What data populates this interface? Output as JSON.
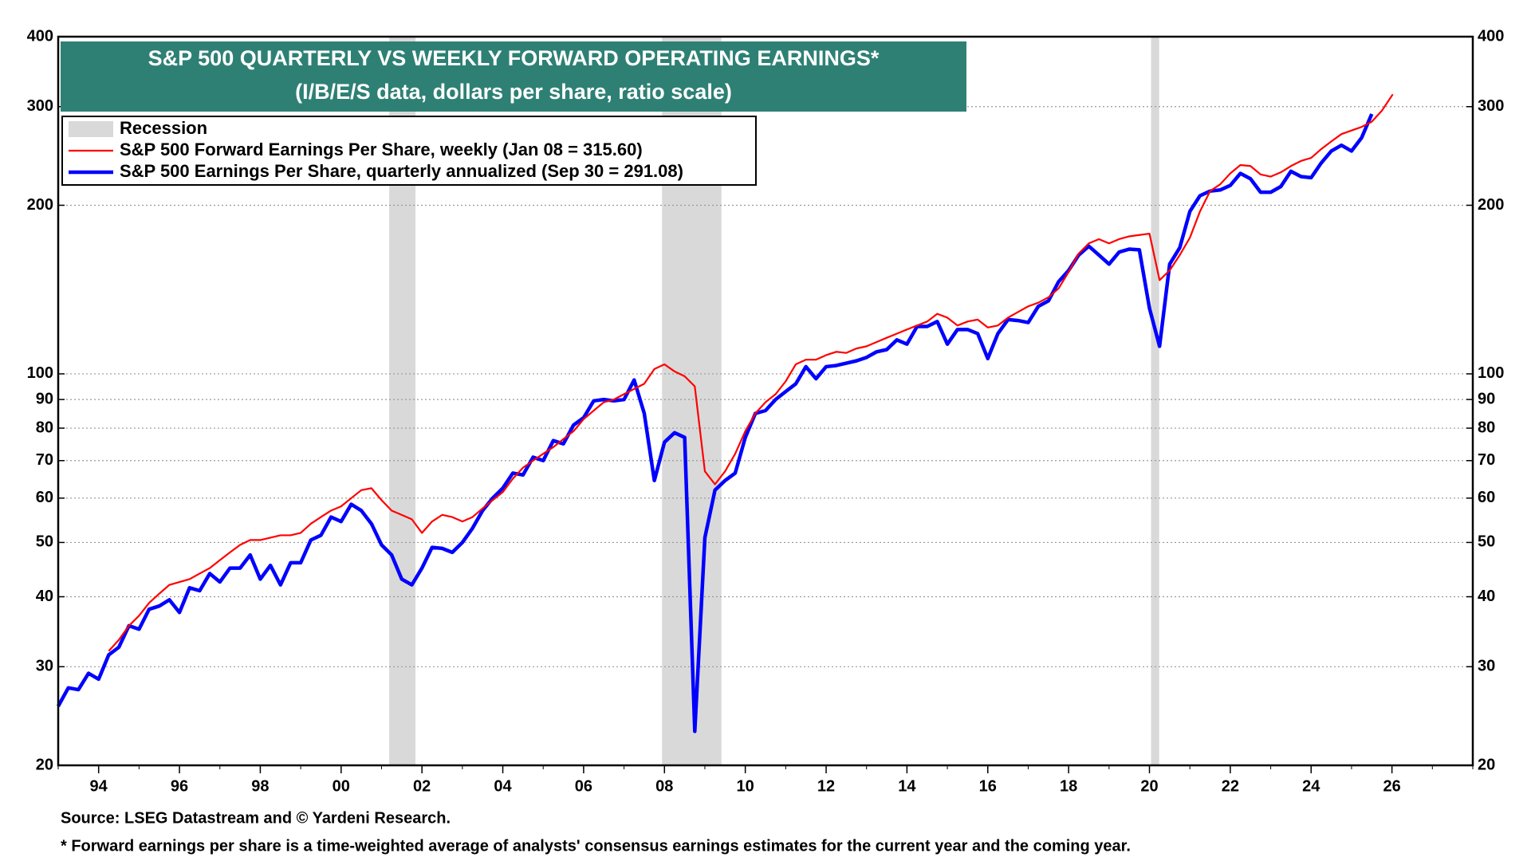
{
  "chart_data": {
    "type": "line",
    "title": "S&P 500 QUARTERLY VS WEEKLY FORWARD OPERATING EARNINGS*",
    "subtitle": "(I/B/E/S data, dollars per share, ratio scale)",
    "source": "Source: LSEG Datastream and © Yardeni Research.",
    "footnote": "* Forward earnings per share is a time-weighted average of analysts' consensus earnings estimates for the current year and the coming year.",
    "log_scale": true,
    "grid": true,
    "legend": "upper left",
    "xlim": [
      1993,
      2028
    ],
    "xticks": [
      {
        "value": 1994,
        "label": "94"
      },
      {
        "value": 1996,
        "label": "96"
      },
      {
        "value": 1998,
        "label": "98"
      },
      {
        "value": 2000,
        "label": "00"
      },
      {
        "value": 2002,
        "label": "02"
      },
      {
        "value": 2004,
        "label": "04"
      },
      {
        "value": 2006,
        "label": "06"
      },
      {
        "value": 2008,
        "label": "08"
      },
      {
        "value": 2010,
        "label": "10"
      },
      {
        "value": 2012,
        "label": "12"
      },
      {
        "value": 2014,
        "label": "14"
      },
      {
        "value": 2016,
        "label": "16"
      },
      {
        "value": 2018,
        "label": "18"
      },
      {
        "value": 2020,
        "label": "20"
      },
      {
        "value": 2022,
        "label": "22"
      },
      {
        "value": 2024,
        "label": "24"
      },
      {
        "value": 2026,
        "label": "26"
      }
    ],
    "ylim": [
      20,
      400
    ],
    "yticks": [
      20,
      30,
      40,
      50,
      60,
      70,
      80,
      90,
      100,
      200,
      300,
      400
    ],
    "recessions": {
      "name": "Recession",
      "color": "#d9d9d9",
      "periods": [
        [
          2001.19,
          2001.84
        ],
        [
          2007.94,
          2009.41
        ],
        [
          2020.04,
          2020.24
        ]
      ]
    },
    "series": [
      {
        "name": "S&P 500 Forward Earnings Per Share, weekly (Jan 08 = 315.60)",
        "color": "#ff0000",
        "x": [
          1994.25,
          1994.5,
          1994.75,
          1995,
          1995.25,
          1995.5,
          1995.75,
          1996,
          1996.25,
          1996.5,
          1996.75,
          1997,
          1997.25,
          1997.5,
          1997.75,
          1998,
          1998.25,
          1998.5,
          1998.75,
          1999,
          1999.25,
          1999.5,
          1999.75,
          2000,
          2000.25,
          2000.5,
          2000.75,
          2001,
          2001.25,
          2001.5,
          2001.75,
          2002,
          2002.25,
          2002.5,
          2002.75,
          2003,
          2003.25,
          2003.5,
          2003.75,
          2004,
          2004.25,
          2004.5,
          2004.75,
          2005,
          2005.25,
          2005.5,
          2005.75,
          2006,
          2006.25,
          2006.5,
          2006.75,
          2007,
          2007.25,
          2007.5,
          2007.75,
          2008,
          2008.25,
          2008.5,
          2008.75,
          2009,
          2009.25,
          2009.5,
          2009.75,
          2010,
          2010.25,
          2010.5,
          2010.75,
          2011,
          2011.25,
          2011.5,
          2011.75,
          2012,
          2012.25,
          2012.5,
          2012.75,
          2013,
          2013.25,
          2013.5,
          2013.75,
          2014,
          2014.25,
          2014.5,
          2014.75,
          2015,
          2015.25,
          2015.5,
          2015.75,
          2016,
          2016.25,
          2016.5,
          2016.75,
          2017,
          2017.25,
          2017.5,
          2017.75,
          2018,
          2018.25,
          2018.5,
          2018.75,
          2019,
          2019.25,
          2019.5,
          2019.75,
          2020,
          2020.25,
          2020.5,
          2020.75,
          2021,
          2021.25,
          2021.5,
          2021.75,
          2022,
          2022.25,
          2022.5,
          2022.75,
          2023,
          2023.25,
          2023.5,
          2023.75,
          2024,
          2024.25,
          2024.5,
          2024.75,
          2025,
          2025.25,
          2025.5,
          2025.75,
          2026.02
        ],
        "values": [
          32,
          33.5,
          35.5,
          37,
          39,
          40.5,
          42,
          42.5,
          43,
          44,
          45,
          46.5,
          48,
          49.5,
          50.5,
          50.5,
          51,
          51.5,
          51.5,
          52,
          54,
          55.5,
          57,
          58,
          60,
          62,
          62.5,
          59.5,
          57,
          56,
          55,
          52,
          54.5,
          56,
          55.5,
          54.5,
          55.5,
          57.5,
          59.5,
          61.5,
          65,
          68,
          70,
          72,
          74,
          76.5,
          79,
          83,
          86,
          89,
          90,
          92,
          94,
          96,
          102,
          104,
          101,
          99,
          95,
          67,
          63.5,
          67,
          72,
          79,
          85,
          89,
          92,
          97,
          104,
          106,
          106,
          108,
          109.5,
          109,
          111,
          112,
          114,
          116,
          118,
          120,
          122,
          124,
          128,
          126,
          122,
          124,
          125,
          121,
          122,
          126,
          129,
          132,
          134,
          137,
          142,
          152,
          164,
          171,
          174,
          171,
          174,
          176,
          177,
          178,
          147,
          153,
          163,
          175,
          195,
          212,
          218,
          228,
          236,
          235,
          227,
          225,
          229,
          235,
          240,
          243,
          252,
          260,
          268,
          272,
          276,
          282,
          295,
          315.6
        ]
      },
      {
        "name": "S&P 500 Earnings Per Share, quarterly annualized (Sep 30 = 291.08)",
        "color": "#0000ff",
        "x": [
          1993,
          1993.25,
          1993.5,
          1993.75,
          1994,
          1994.25,
          1994.5,
          1994.75,
          1995,
          1995.25,
          1995.5,
          1995.75,
          1996,
          1996.25,
          1996.5,
          1996.75,
          1997,
          1997.25,
          1997.5,
          1997.75,
          1998,
          1998.25,
          1998.5,
          1998.75,
          1999,
          1999.25,
          1999.5,
          1999.75,
          2000,
          2000.25,
          2000.5,
          2000.75,
          2001,
          2001.25,
          2001.5,
          2001.75,
          2002,
          2002.25,
          2002.5,
          2002.75,
          2003,
          2003.25,
          2003.5,
          2003.75,
          2004,
          2004.25,
          2004.5,
          2004.75,
          2005,
          2005.25,
          2005.5,
          2005.75,
          2006,
          2006.25,
          2006.5,
          2006.75,
          2007,
          2007.25,
          2007.5,
          2007.75,
          2008,
          2008.25,
          2008.5,
          2008.75,
          2009,
          2009.25,
          2009.5,
          2009.75,
          2010,
          2010.25,
          2010.5,
          2010.75,
          2011,
          2011.25,
          2011.5,
          2011.75,
          2012,
          2012.25,
          2012.5,
          2012.75,
          2013,
          2013.25,
          2013.5,
          2013.75,
          2014,
          2014.25,
          2014.5,
          2014.75,
          2015,
          2015.25,
          2015.5,
          2015.75,
          2016,
          2016.25,
          2016.5,
          2016.75,
          2017,
          2017.25,
          2017.5,
          2017.75,
          2018,
          2018.25,
          2018.5,
          2018.75,
          2019,
          2019.25,
          2019.5,
          2019.75,
          2020,
          2020.25,
          2020.5,
          2020.75,
          2021,
          2021.25,
          2021.5,
          2021.75,
          2022,
          2022.25,
          2022.5,
          2022.75,
          2023,
          2023.25,
          2023.5,
          2023.75,
          2024,
          2024.25,
          2024.5,
          2024.75,
          2025,
          2025.25,
          2025.5
        ],
        "values": [
          25.5,
          27.5,
          27.3,
          29.2,
          28.5,
          31.5,
          32.5,
          35.5,
          35,
          38,
          38.5,
          39.5,
          37.5,
          41.5,
          41,
          44,
          42.5,
          45,
          45,
          47.5,
          43,
          45.5,
          42,
          46,
          46,
          50.5,
          51.5,
          55.5,
          54.5,
          58.5,
          57,
          54,
          49.5,
          47.5,
          43,
          42,
          45,
          49,
          48.8,
          48,
          50,
          53,
          57,
          60,
          62.5,
          66.5,
          66,
          71,
          70,
          76,
          75,
          81,
          83.5,
          89.5,
          90,
          89.5,
          90,
          97.5,
          85,
          64.5,
          75.5,
          78.5,
          77,
          23,
          51,
          62,
          64.5,
          66.5,
          77,
          85,
          86,
          90,
          93,
          96,
          103,
          98,
          103,
          103.5,
          104.5,
          105.5,
          107,
          109.5,
          110.5,
          115,
          113,
          121.5,
          121.5,
          124,
          113,
          120,
          120,
          118,
          106.5,
          118,
          125,
          124.5,
          123.5,
          132,
          135,
          146,
          153,
          163,
          169,
          163,
          157,
          165,
          167,
          166.5,
          131,
          112,
          157,
          168,
          195,
          208,
          212,
          213,
          217,
          228,
          223,
          211,
          211,
          216,
          230,
          225,
          224,
          238,
          250,
          256,
          250,
          264,
          291.08
        ]
      }
    ]
  }
}
